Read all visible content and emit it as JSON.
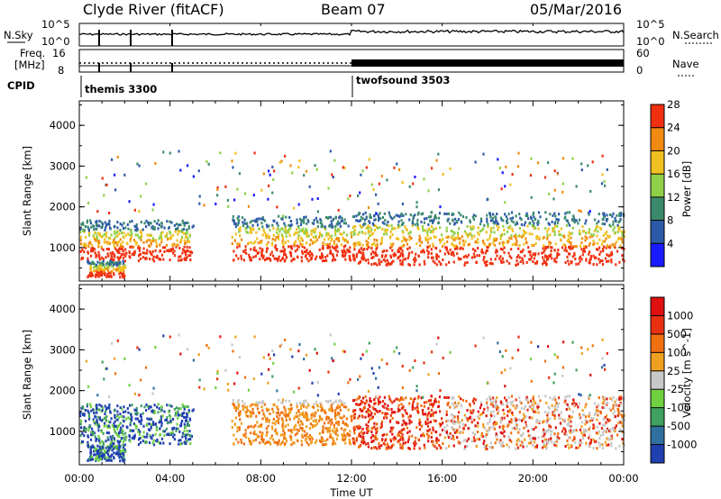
{
  "header": {
    "station": "Clyde River (fitACF)",
    "beam": "Beam 07",
    "date": "05/Mar/2016"
  },
  "top_panels": {
    "nsky_label": "N.Sky",
    "nsearch_label": "N.Search",
    "left_ticks": [
      "10^5",
      "10^0"
    ],
    "right_ticks": [
      "10^5",
      "10^0"
    ],
    "freq_label_1": "Freq.",
    "freq_label_2": "[MHz]",
    "freq_ticks": [
      "16",
      "8"
    ],
    "nave_label": "Nave",
    "nave_ticks": [
      "60",
      "0"
    ],
    "cpid_label": "CPID",
    "modes": [
      {
        "name": "themis 3300",
        "start_hour": 0
      },
      {
        "name": "twofsound 3503",
        "start_hour": 12
      }
    ]
  },
  "x_axis": {
    "label": "Time UT",
    "ticks": [
      "00:00",
      "04:00",
      "08:00",
      "12:00",
      "16:00",
      "20:00",
      "00:00"
    ]
  },
  "chart_data": [
    {
      "type": "heatmap",
      "title": "",
      "xlabel": "Time UT",
      "ylabel": "Slant Range [km]",
      "x_range_hours": [
        0,
        24
      ],
      "y_range_km": [
        180,
        4600
      ],
      "y_ticks": [
        1000,
        2000,
        3000,
        4000
      ],
      "colorbar_label": "Power [dB]",
      "colorbar_ticks": [
        "4",
        "8",
        "12",
        "16",
        "20",
        "24",
        "28"
      ],
      "colorbar_colors": [
        "#1a1aff",
        "#2c5aa8",
        "#3c8a6e",
        "#8fd048",
        "#f0c020",
        "#f08a10",
        "#f03010"
      ],
      "grid": false
    },
    {
      "type": "heatmap",
      "title": "",
      "xlabel": "Time UT",
      "ylabel": "Slant Range [km]",
      "x_range_hours": [
        0,
        24
      ],
      "y_range_km": [
        180,
        4600
      ],
      "y_ticks": [
        1000,
        2000,
        3000,
        4000
      ],
      "colorbar_label": "Velocity [m s^-1]",
      "colorbar_ticks": [
        "1000",
        "500",
        "100",
        "25",
        "-25",
        "-100",
        "-500",
        "-1000"
      ],
      "colorbar_colors": [
        "#2040b0",
        "#3070a0",
        "#40a060",
        "#70d040",
        "#c8c8c8",
        "#f0a020",
        "#f07010",
        "#e83010",
        "#e01010"
      ],
      "grid": false
    }
  ]
}
